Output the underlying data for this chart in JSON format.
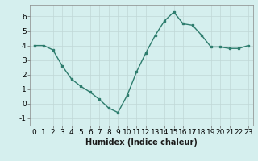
{
  "x": [
    0,
    1,
    2,
    3,
    4,
    5,
    6,
    7,
    8,
    9,
    10,
    11,
    12,
    13,
    14,
    15,
    16,
    17,
    18,
    19,
    20,
    21,
    22,
    23
  ],
  "y": [
    4.0,
    4.0,
    3.7,
    2.6,
    1.7,
    1.2,
    0.8,
    0.3,
    -0.3,
    -0.6,
    0.6,
    2.2,
    3.5,
    4.7,
    5.7,
    6.3,
    5.5,
    5.4,
    4.7,
    3.9,
    3.9,
    3.8,
    3.8,
    4.0
  ],
  "line_color": "#2e7d6e",
  "marker": "s",
  "marker_size": 2.0,
  "bg_color": "#d5efee",
  "grid_color": "#c0d8d6",
  "xlabel": "Humidex (Indice chaleur)",
  "xlabel_fontsize": 7,
  "ylabel_ticks": [
    -1,
    0,
    1,
    2,
    3,
    4,
    5,
    6
  ],
  "xlim": [
    -0.5,
    23.5
  ],
  "ylim": [
    -1.5,
    6.8
  ],
  "tick_fontsize": 6.5,
  "line_width": 1.0
}
